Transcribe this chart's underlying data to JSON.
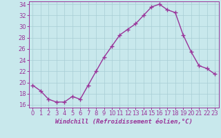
{
  "x": [
    0,
    1,
    2,
    3,
    4,
    5,
    6,
    7,
    8,
    9,
    10,
    11,
    12,
    13,
    14,
    15,
    16,
    17,
    18,
    19,
    20,
    21,
    22,
    23
  ],
  "y": [
    19.5,
    18.5,
    17.0,
    16.5,
    16.5,
    17.5,
    17.0,
    19.5,
    22.0,
    24.5,
    26.5,
    28.5,
    29.5,
    30.5,
    32.0,
    33.5,
    34.0,
    33.0,
    32.5,
    28.5,
    25.5,
    23.0,
    22.5,
    21.5
  ],
  "line_color": "#993399",
  "marker": "+",
  "marker_size": 4,
  "bg_color": "#c8e8ec",
  "grid_color": "#a8cdd4",
  "xlabel": "Windchill (Refroidissement éolien,°C)",
  "ylim": [
    15.5,
    34.5
  ],
  "yticks": [
    16,
    18,
    20,
    22,
    24,
    26,
    28,
    30,
    32,
    34
  ],
  "xlim": [
    -0.5,
    23.5
  ],
  "xticks": [
    0,
    1,
    2,
    3,
    4,
    5,
    6,
    7,
    8,
    9,
    10,
    11,
    12,
    13,
    14,
    15,
    16,
    17,
    18,
    19,
    20,
    21,
    22,
    23
  ],
  "xlabel_fontsize": 6.5,
  "tick_fontsize": 6,
  "line_width": 1.0,
  "marker_edge_width": 1.0
}
